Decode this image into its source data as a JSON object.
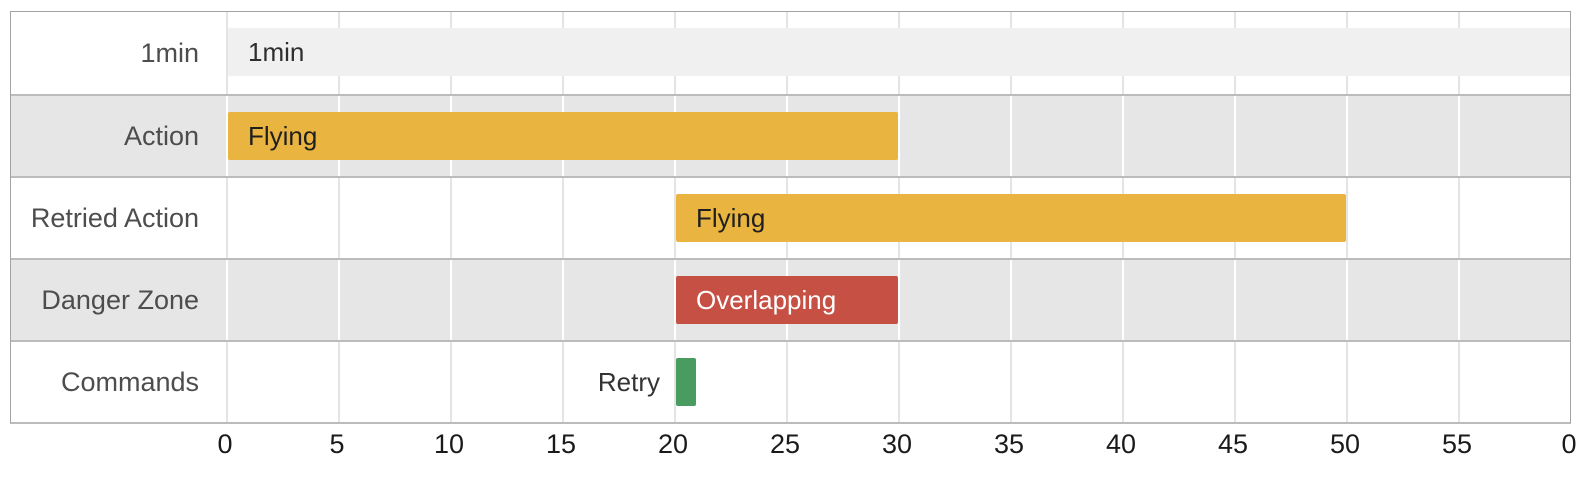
{
  "chart_data": {
    "type": "gantt",
    "time_unit": "seconds",
    "x_axis": {
      "range": [
        0,
        60
      ],
      "tick_step": 5,
      "tick_labels": [
        "0",
        "5",
        "10",
        "15",
        "20",
        "25",
        "30",
        "35",
        "40",
        "45",
        "50",
        "55",
        "0"
      ],
      "grid": true
    },
    "rows": [
      {
        "label": "1min",
        "bars": [
          {
            "label": "1min",
            "start": 0,
            "end": 60,
            "color": "#f0f0f0",
            "text_color": "#2e2e2e",
            "label_position": "inside"
          }
        ]
      },
      {
        "label": "Action",
        "bars": [
          {
            "label": "Flying",
            "start": 0,
            "end": 30,
            "color": "#eab440",
            "text_color": "#1f1f1f",
            "label_position": "inside"
          }
        ]
      },
      {
        "label": "Retried Action",
        "bars": [
          {
            "label": "Flying",
            "start": 20,
            "end": 50,
            "color": "#eab440",
            "text_color": "#1f1f1f",
            "label_position": "inside"
          }
        ]
      },
      {
        "label": "Danger Zone",
        "bars": [
          {
            "label": "Overlapping",
            "start": 20,
            "end": 30,
            "color": "#c65043",
            "text_color": "#ffffff",
            "label_position": "inside"
          }
        ]
      },
      {
        "label": "Commands",
        "bars": [
          {
            "label": "Retry",
            "start": 20,
            "end": 21,
            "color": "#4a9b60",
            "text_color": "#333333",
            "label_position": "outside-left"
          }
        ]
      }
    ]
  },
  "colors": {
    "band_alt": "#e6e6e6",
    "grid_on_white": "#e4e4e4",
    "grid_on_gray": "#ffffff",
    "chart_border": "#a3a3a3",
    "row_separator": "#bcbcbc",
    "axis_text": "#1a1a1a",
    "row_label_text": "#4d4d4d",
    "task_amber": "#eab440",
    "task_red": "#c65043",
    "task_green": "#4a9b60",
    "task_gray": "#f0f0f0"
  }
}
